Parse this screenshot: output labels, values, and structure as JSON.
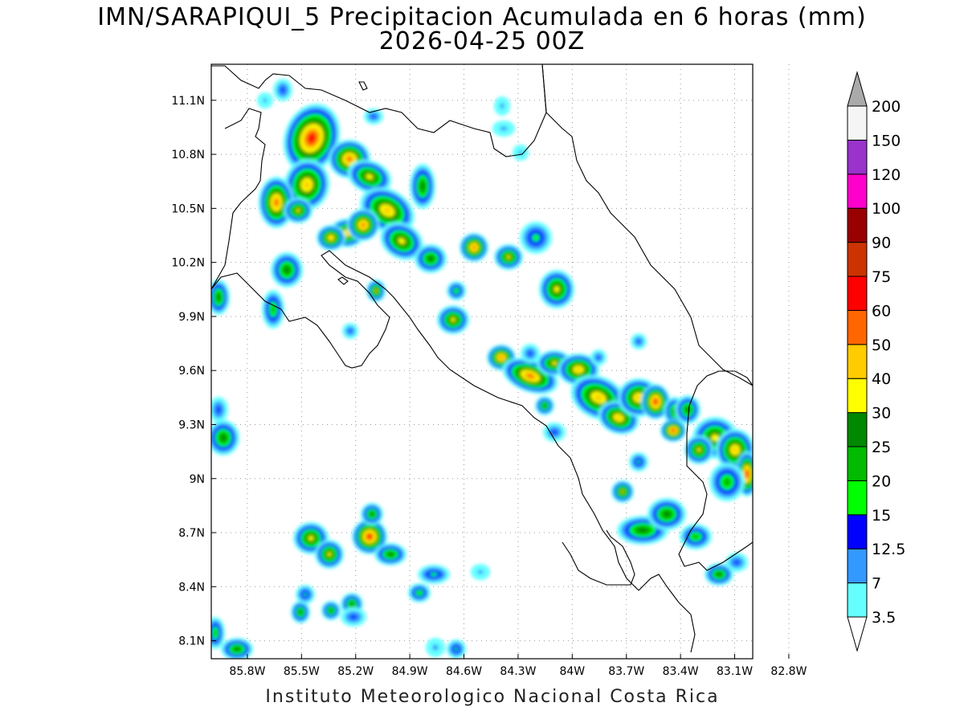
{
  "title": {
    "line1": "IMN/SARAPIQUI_5 Precipitacion Acumulada en 6 horas (mm)",
    "line2": "2026-04-25 00Z"
  },
  "credit": "Instituto Meteorologico Nacional Costa Rica",
  "map": {
    "lon_range": [
      -86.0,
      -83.0
    ],
    "lat_range": [
      8.0,
      11.3
    ],
    "lat_ticks": [
      {
        "value": 11.1,
        "label": "11.1N"
      },
      {
        "value": 10.8,
        "label": "10.8N"
      },
      {
        "value": 10.5,
        "label": "10.5N"
      },
      {
        "value": 10.2,
        "label": "10.2N"
      },
      {
        "value": 9.9,
        "label": "9.9N"
      },
      {
        "value": 9.6,
        "label": "9.6N"
      },
      {
        "value": 9.3,
        "label": "9.3N"
      },
      {
        "value": 9.0,
        "label": "9N"
      },
      {
        "value": 8.7,
        "label": "8.7N"
      },
      {
        "value": 8.4,
        "label": "8.4N"
      },
      {
        "value": 8.1,
        "label": "8.1N"
      }
    ],
    "lon_ticks": [
      {
        "value": -85.8,
        "label": "85.8W"
      },
      {
        "value": -85.5,
        "label": "85.5W"
      },
      {
        "value": -85.2,
        "label": "85.2W"
      },
      {
        "value": -84.9,
        "label": "84.9W"
      },
      {
        "value": -84.6,
        "label": "84.6W"
      },
      {
        "value": -84.3,
        "label": "84.3W"
      },
      {
        "value": -84.0,
        "label": "84W"
      },
      {
        "value": -83.7,
        "label": "83.7W"
      },
      {
        "value": -83.4,
        "label": "83.4W"
      },
      {
        "value": -83.1,
        "label": "83.1W"
      },
      {
        "value": -82.8,
        "label": "82.8W"
      }
    ],
    "grid": "dotted"
  },
  "colorbar": {
    "levels": [
      "3.5",
      "7",
      "12.5",
      "15",
      "20",
      "25",
      "30",
      "40",
      "50",
      "60",
      "75",
      "90",
      "100",
      "120",
      "150",
      "200"
    ],
    "colors": [
      "#66ffff",
      "#3399ff",
      "#0000ff",
      "#00ff00",
      "#00bb00",
      "#008800",
      "#ffff00",
      "#ffcc00",
      "#ff6600",
      "#ff0000",
      "#cc3300",
      "#990000",
      "#ff00cc",
      "#9933cc",
      "#f5f5f5",
      "#aaaaaa"
    ]
  }
}
